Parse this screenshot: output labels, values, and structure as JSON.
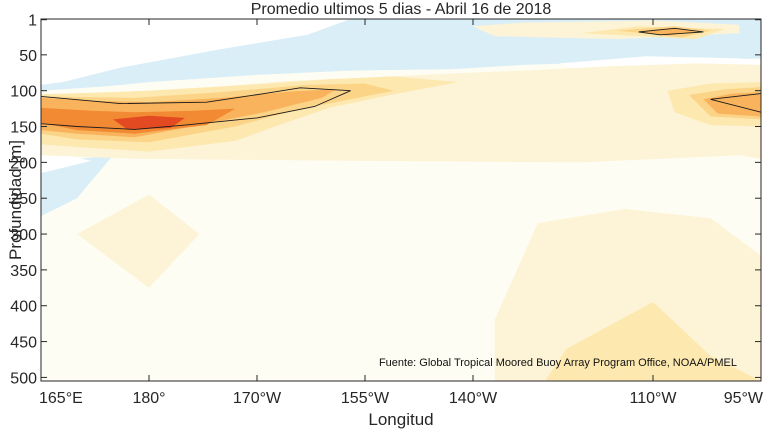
{
  "chart_data": {
    "type": "heatmap",
    "title": "Promedio ultimos 5 dias - Abril 16 de 2018",
    "xlabel": "Longitud",
    "ylabel": "Profundidad [m]",
    "source": "Fuente: Global Tropical Moored Buoy Array Program Office, NOAA/PMEL",
    "xlim": [
      165,
      265
    ],
    "ylim": [
      0,
      505
    ],
    "y_reversed": true,
    "x_ticks": [
      {
        "value": 165,
        "label": "165°E"
      },
      {
        "value": 180,
        "label": "180°"
      },
      {
        "value": 195,
        "label": "170°W"
      },
      {
        "value": 210,
        "label": "155°W"
      },
      {
        "value": 225,
        "label": "140°W"
      },
      {
        "value": 250,
        "label": "110°W"
      },
      {
        "value": 265,
        "label": "95°W"
      }
    ],
    "y_ticks": [
      1,
      50,
      100,
      150,
      200,
      250,
      300,
      350,
      400,
      450,
      500
    ],
    "colors": {
      "background": "#fefdf3",
      "levels": [
        "#daeef7",
        "#ffffff",
        "#fdf3d6",
        "#fde9b0",
        "#fbd488",
        "#f9b35c",
        "#f28a34",
        "#e34a22",
        "#d42020"
      ]
    },
    "grid": false,
    "contours": [
      {
        "level": 0,
        "polygon": [
          [
            165,
            100
          ],
          [
            174,
            94
          ],
          [
            180,
            88
          ],
          [
            195,
            78
          ],
          [
            208,
            72
          ],
          [
            222,
            70
          ],
          [
            232,
            64
          ],
          [
            245,
            60
          ],
          [
            262,
            56
          ],
          [
            265,
            55
          ],
          [
            265,
            0
          ],
          [
            165,
            0
          ]
        ]
      },
      {
        "level": 0,
        "polygon": [
          [
            170,
            250
          ],
          [
            165,
            275
          ],
          [
            165,
            200
          ],
          [
            175,
            190
          ]
        ]
      },
      {
        "level": 1,
        "polygon": [
          [
            167,
            0
          ],
          [
            208,
            0
          ],
          [
            202,
            22
          ],
          [
            190,
            42
          ],
          [
            176,
            68
          ],
          [
            168,
            88
          ],
          [
            165,
            92
          ],
          [
            165,
            0
          ]
        ]
      },
      {
        "level": 1,
        "polygon": [
          [
            165,
            182
          ],
          [
            172,
            198
          ],
          [
            165,
            215
          ]
        ]
      },
      {
        "level": 1,
        "polygon": [
          [
            237,
            62
          ],
          [
            249,
            52
          ],
          [
            262,
            55
          ],
          [
            265,
            58
          ],
          [
            265,
            75
          ],
          [
            255,
            80
          ],
          [
            242,
            76
          ]
        ]
      },
      {
        "level": 2,
        "polygon": [
          [
            165,
            108
          ],
          [
            172,
            104
          ],
          [
            178,
            101
          ],
          [
            190,
            94
          ],
          [
            200,
            86
          ],
          [
            210,
            82
          ],
          [
            222,
            76
          ],
          [
            232,
            72
          ],
          [
            244,
            66
          ],
          [
            256,
            62
          ],
          [
            265,
            64
          ],
          [
            265,
            195
          ],
          [
            262,
            190
          ],
          [
            240,
            200
          ],
          [
            210,
            198
          ],
          [
            188,
            196
          ],
          [
            178,
            195
          ],
          [
            165,
            190
          ]
        ]
      },
      {
        "level": 2,
        "polygon": [
          [
            225,
            10
          ],
          [
            232,
            5
          ],
          [
            250,
            2
          ],
          [
            262,
            8
          ],
          [
            262,
            20
          ],
          [
            245,
            28
          ],
          [
            228,
            24
          ]
        ]
      },
      {
        "level": 2,
        "polygon": [
          [
            170,
            300
          ],
          [
            180,
            245
          ],
          [
            187,
            300
          ],
          [
            180,
            375
          ]
        ]
      },
      {
        "level": 2,
        "polygon": [
          [
            234,
            285
          ],
          [
            246,
            265
          ],
          [
            258,
            278
          ],
          [
            265,
            330
          ],
          [
            265,
            505
          ],
          [
            228,
            505
          ],
          [
            228,
            420
          ]
        ]
      },
      {
        "level": 3,
        "polygon": [
          [
            165,
            105
          ],
          [
            172,
            103
          ],
          [
            180,
            100
          ],
          [
            194,
            92
          ],
          [
            205,
            84
          ],
          [
            214,
            80
          ],
          [
            223,
            88
          ],
          [
            214,
            105
          ],
          [
            205,
            124
          ],
          [
            198,
            148
          ],
          [
            192,
            170
          ],
          [
            180,
            185
          ],
          [
            172,
            180
          ],
          [
            165,
            175
          ]
        ]
      },
      {
        "level": 3,
        "polygon": [
          [
            240,
            20
          ],
          [
            248,
            10
          ],
          [
            260,
            14
          ],
          [
            256,
            28
          ]
        ]
      },
      {
        "level": 3,
        "polygon": [
          [
            252,
            100
          ],
          [
            258,
            90
          ],
          [
            265,
            88
          ],
          [
            265,
            150
          ],
          [
            258,
            148
          ],
          [
            253,
            130
          ]
        ]
      },
      {
        "level": 3,
        "polygon": [
          [
            238,
            460
          ],
          [
            250,
            395
          ],
          [
            258,
            470
          ],
          [
            265,
            505
          ],
          [
            235,
            505
          ]
        ]
      },
      {
        "level": 4,
        "polygon": [
          [
            165,
            108
          ],
          [
            178,
            110
          ],
          [
            190,
            102
          ],
          [
            202,
            92
          ],
          [
            210,
            90
          ],
          [
            214,
            100
          ],
          [
            208,
            112
          ],
          [
            200,
            128
          ],
          [
            192,
            150
          ],
          [
            180,
            172
          ],
          [
            170,
            168
          ],
          [
            165,
            160
          ]
        ]
      },
      {
        "level": 4,
        "polygon": [
          [
            245,
            16
          ],
          [
            253,
            10
          ],
          [
            258,
            16
          ],
          [
            254,
            26
          ]
        ]
      },
      {
        "level": 4,
        "polygon": [
          [
            255,
            106
          ],
          [
            260,
            98
          ],
          [
            265,
            95
          ],
          [
            265,
            140
          ],
          [
            258,
            136
          ]
        ]
      },
      {
        "level": 5,
        "polygon": [
          [
            165,
            110
          ],
          [
            172,
            114
          ],
          [
            180,
            116
          ],
          [
            190,
            110
          ],
          [
            200,
            101
          ],
          [
            206,
            98
          ],
          [
            204,
            110
          ],
          [
            196,
            130
          ],
          [
            186,
            150
          ],
          [
            178,
            165
          ],
          [
            170,
            160
          ],
          [
            165,
            155
          ]
        ]
      },
      {
        "level": 5,
        "polygon": [
          [
            248,
            17
          ],
          [
            253,
            13
          ],
          [
            256,
            18
          ],
          [
            252,
            23
          ]
        ]
      },
      {
        "level": 5,
        "polygon": [
          [
            257,
            112
          ],
          [
            261,
            104
          ],
          [
            265,
            102
          ],
          [
            265,
            136
          ],
          [
            259,
            132
          ]
        ]
      },
      {
        "level": 6,
        "polygon": [
          [
            165,
            124
          ],
          [
            172,
            128
          ],
          [
            178,
            130
          ],
          [
            186,
            128
          ],
          [
            192,
            125
          ],
          [
            188,
            148
          ],
          [
            178,
            160
          ],
          [
            170,
            155
          ],
          [
            165,
            145
          ]
        ]
      },
      {
        "level": 7,
        "polygon": [
          [
            175,
            140
          ],
          [
            180,
            135
          ],
          [
            185,
            138
          ],
          [
            183,
            152
          ],
          [
            177,
            154
          ]
        ]
      }
    ],
    "isolines": [
      [
        [
          165,
          108
        ],
        [
          176,
          118
        ],
        [
          188,
          116
        ],
        [
          196,
          104
        ],
        [
          201,
          96
        ],
        [
          208,
          100
        ],
        [
          203,
          122
        ],
        [
          195,
          138
        ],
        [
          185,
          148
        ],
        [
          178,
          154
        ],
        [
          170,
          150
        ],
        [
          165,
          146
        ]
      ],
      [
        [
          248,
          18
        ],
        [
          253,
          13
        ],
        [
          257,
          18
        ],
        [
          251,
          22
        ],
        [
          248,
          18
        ]
      ],
      [
        [
          265,
          104
        ],
        [
          258,
          112
        ],
        [
          265,
          130
        ]
      ]
    ]
  }
}
